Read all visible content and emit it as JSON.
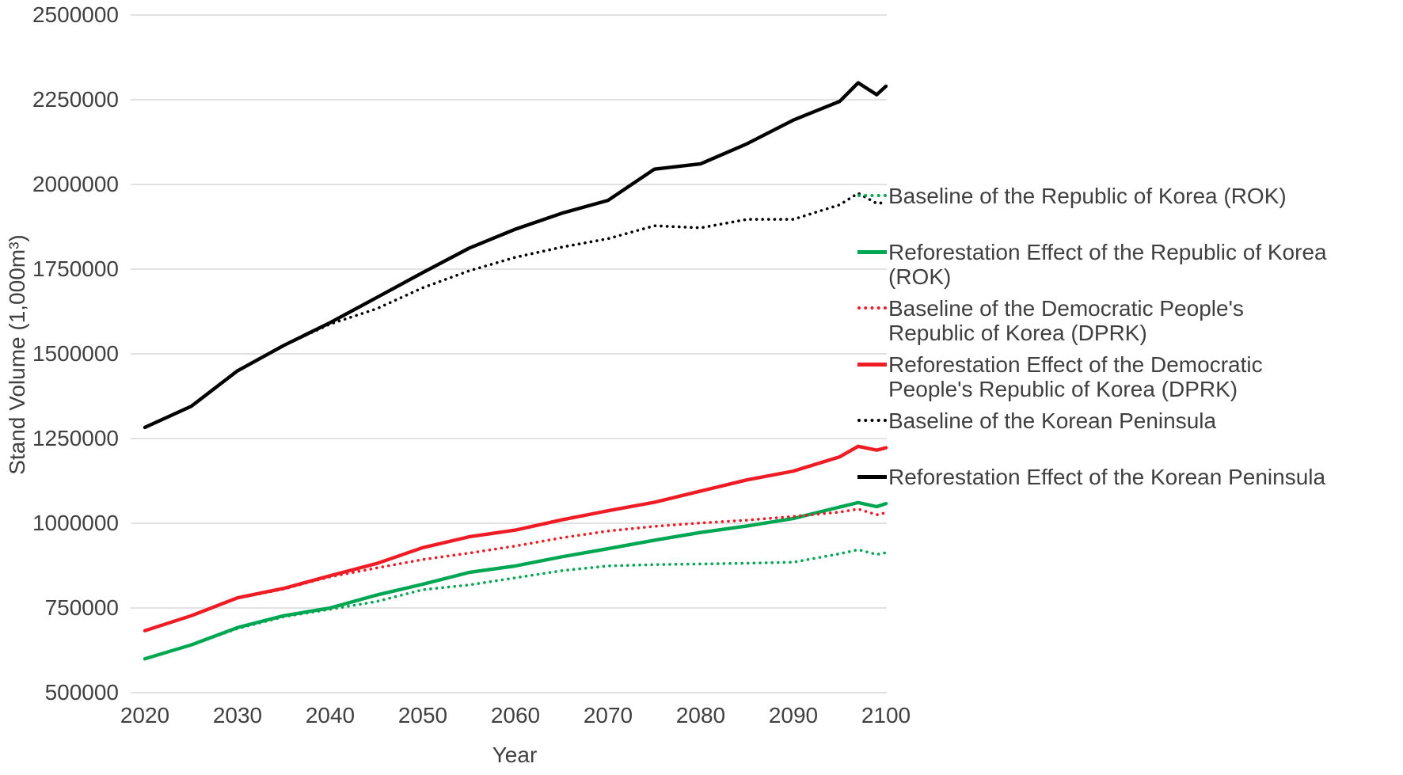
{
  "page": {
    "background": "#ffffff"
  },
  "colors": {
    "grid": "#d9d9d9",
    "axis_text": "#404040",
    "rok_green": "#00a651",
    "dprk_red": "#ee1c25",
    "peninsula_black": "#000000"
  },
  "chart_data": {
    "type": "line",
    "title": "",
    "xlabel": "Year",
    "ylabel": "Stand Volume (1,000m³)",
    "xlim": [
      2020,
      2100
    ],
    "ylim": [
      500000,
      2500000
    ],
    "x_ticks": [
      2020,
      2030,
      2040,
      2050,
      2060,
      2070,
      2080,
      2090,
      2100
    ],
    "y_ticks": [
      2500000,
      2250000,
      2000000,
      1750000,
      1500000,
      1250000,
      1000000,
      750000,
      500000
    ],
    "grid": "horizontal",
    "legend_position": "right",
    "years": [
      2020,
      2025,
      2030,
      2035,
      2040,
      2045,
      2050,
      2055,
      2060,
      2065,
      2070,
      2075,
      2080,
      2085,
      2090,
      2095,
      2097,
      2099,
      2100
    ],
    "series": [
      {
        "name": "Baseline of the Republic of Korea (ROK)",
        "color": "#00a651",
        "line_style": "dotted",
        "values": [
          600000,
          641000,
          689000,
          724000,
          746000,
          769000,
          804000,
          818000,
          839000,
          860000,
          874000,
          878000,
          880000,
          882000,
          885000,
          910000,
          922000,
          908000,
          913000
        ]
      },
      {
        "name": "Reforestation Effect of the Republic of Korea (ROK)",
        "color": "#00a651",
        "line_style": "solid",
        "values": [
          600000,
          641000,
          692000,
          727000,
          750000,
          788000,
          820000,
          855000,
          874000,
          901000,
          925000,
          950000,
          973000,
          992000,
          1014000,
          1048000,
          1061000,
          1049000,
          1058000
        ]
      },
      {
        "name": "Baseline of the Democratic People's Republic of Korea (DPRK)",
        "color": "#ee1c25",
        "line_style": "dotted",
        "values": [
          683000,
          727000,
          779000,
          806000,
          842000,
          868000,
          893000,
          912000,
          933000,
          957000,
          977000,
          991000,
          1001000,
          1009000,
          1020000,
          1033000,
          1042000,
          1025000,
          1031000
        ]
      },
      {
        "name": "Reforestation Effect of the Democratic People's Republic of Korea (DPRK)",
        "color": "#ee1c25",
        "line_style": "solid",
        "values": [
          683000,
          727000,
          780000,
          808000,
          845000,
          881000,
          928000,
          960000,
          980000,
          1010000,
          1037000,
          1062000,
          1095000,
          1128000,
          1154000,
          1196000,
          1227000,
          1216000,
          1223000
        ]
      },
      {
        "name": "Baseline of the Korean Peninsula",
        "color": "#000000",
        "line_style": "dotted",
        "values": [
          1283000,
          1345000,
          1450000,
          1525000,
          1588000,
          1633000,
          1695000,
          1745000,
          1785000,
          1815000,
          1840000,
          1878000,
          1872000,
          1897000,
          1897000,
          1940000,
          1974000,
          1944000,
          1947000
        ]
      },
      {
        "name": "Reforestation Effect of the Korean Peninsula",
        "color": "#000000",
        "line_style": "solid",
        "values": [
          1283000,
          1345000,
          1450000,
          1525000,
          1592000,
          1666000,
          1740000,
          1812000,
          1868000,
          1915000,
          1953000,
          2045000,
          2061000,
          2120000,
          2190000,
          2245000,
          2300000,
          2265000,
          2290000
        ]
      }
    ],
    "legend": [
      {
        "label": "Baseline of the Republic of Korea (ROK)",
        "color": "#00a651",
        "style": "dotted"
      },
      {
        "label": "Reforestation Effect of the Republic of Korea\n(ROK)",
        "color": "#00a651",
        "style": "solid"
      },
      {
        "label": "Baseline of the Democratic People's\nRepublic of Korea (DPRK)",
        "color": "#ee1c25",
        "style": "dotted"
      },
      {
        "label": "Reforestation Effect of the Democratic\nPeople's Republic of Korea (DPRK)",
        "color": "#ee1c25",
        "style": "solid"
      },
      {
        "label": "Baseline of the Korean Peninsula",
        "color": "#000000",
        "style": "dotted"
      },
      {
        "label": "Reforestation Effect of the Korean Peninsula",
        "color": "#000000",
        "style": "solid"
      }
    ]
  }
}
